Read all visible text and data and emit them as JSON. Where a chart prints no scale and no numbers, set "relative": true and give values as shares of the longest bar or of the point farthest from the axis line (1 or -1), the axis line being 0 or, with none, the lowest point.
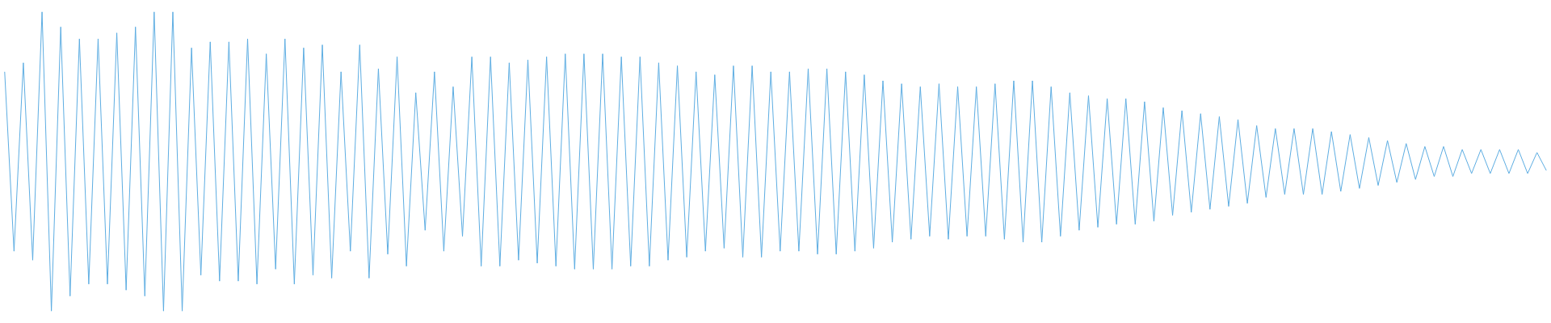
{
  "chart_data": {
    "type": "line",
    "relative": true,
    "color": "#5dade2",
    "grid": false,
    "marker": "none",
    "line_style": "solid",
    "categories": [
      null,
      null,
      null,
      null,
      null,
      null,
      null,
      null,
      null,
      null,
      null,
      null,
      null,
      null,
      null,
      null,
      null,
      null,
      null,
      null,
      null,
      null,
      null,
      null,
      null,
      null,
      null,
      null,
      null,
      null,
      null,
      null,
      null,
      null,
      null,
      null,
      null,
      null,
      null,
      null,
      null,
      null,
      null,
      null,
      null,
      null,
      null,
      null,
      null,
      null,
      null,
      null,
      null,
      null,
      null,
      null,
      null,
      null,
      null,
      null,
      null,
      null,
      null,
      null,
      null,
      null,
      null,
      null,
      null,
      null,
      null,
      null,
      null,
      null,
      null,
      null,
      null,
      null,
      null,
      null,
      null,
      null,
      null,
      null,
      null,
      null,
      null,
      null,
      null,
      null,
      null,
      null,
      null,
      null,
      null,
      null,
      null,
      null,
      null,
      null,
      null,
      null,
      null,
      null,
      null,
      null,
      null,
      null,
      null,
      null,
      null,
      null,
      null,
      null,
      null,
      null,
      null,
      null,
      null,
      null,
      null,
      null,
      null,
      null,
      null,
      null,
      null,
      null,
      null,
      null,
      null,
      null,
      null,
      null,
      null,
      null,
      null,
      null,
      null,
      null,
      null,
      null,
      null,
      null,
      null,
      null,
      null,
      null,
      null,
      null,
      null,
      null,
      null,
      null,
      null,
      null,
      null,
      null,
      null,
      null,
      null,
      null,
      null,
      null,
      null,
      null
    ],
    "values": [
      0.8,
      0.2,
      0.83,
      0.17,
      1.0,
      0.0,
      0.95,
      0.05,
      0.91,
      0.09,
      0.91,
      0.09,
      0.93,
      0.07,
      0.95,
      0.05,
      1.0,
      0.0,
      1.0,
      0.0,
      0.88,
      0.12,
      0.9,
      0.1,
      0.9,
      0.1,
      0.91,
      0.09,
      0.86,
      0.14,
      0.91,
      0.09,
      0.88,
      0.12,
      0.89,
      0.11,
      0.8,
      0.2,
      0.89,
      0.11,
      0.81,
      0.19,
      0.85,
      0.15,
      0.73,
      0.27,
      0.8,
      0.2,
      0.75,
      0.25,
      0.85,
      0.15,
      0.85,
      0.15,
      0.83,
      0.17,
      0.84,
      0.16,
      0.85,
      0.15,
      0.86,
      0.14,
      0.86,
      0.14,
      0.86,
      0.14,
      0.85,
      0.15,
      0.85,
      0.15,
      0.83,
      0.17,
      0.82,
      0.18,
      0.8,
      0.2,
      0.79,
      0.21,
      0.82,
      0.18,
      0.82,
      0.18,
      0.8,
      0.2,
      0.8,
      0.2,
      0.81,
      0.19,
      0.81,
      0.19,
      0.8,
      0.2,
      0.79,
      0.21,
      0.77,
      0.23,
      0.76,
      0.24,
      0.75,
      0.25,
      0.76,
      0.24,
      0.75,
      0.25,
      0.75,
      0.25,
      0.76,
      0.24,
      0.77,
      0.23,
      0.77,
      0.23,
      0.75,
      0.25,
      0.73,
      0.27,
      0.72,
      0.28,
      0.71,
      0.29,
      0.71,
      0.29,
      0.7,
      0.3,
      0.68,
      0.32,
      0.67,
      0.33,
      0.66,
      0.34,
      0.65,
      0.35,
      0.64,
      0.36,
      0.62,
      0.38,
      0.61,
      0.39,
      0.61,
      0.39,
      0.61,
      0.39,
      0.6,
      0.4,
      0.59,
      0.41,
      0.58,
      0.42,
      0.57,
      0.43,
      0.56,
      0.44,
      0.55,
      0.45,
      0.55,
      0.45,
      0.54,
      0.46,
      0.54,
      0.46,
      0.54,
      0.46,
      0.54,
      0.46,
      0.53,
      0.47
    ]
  }
}
